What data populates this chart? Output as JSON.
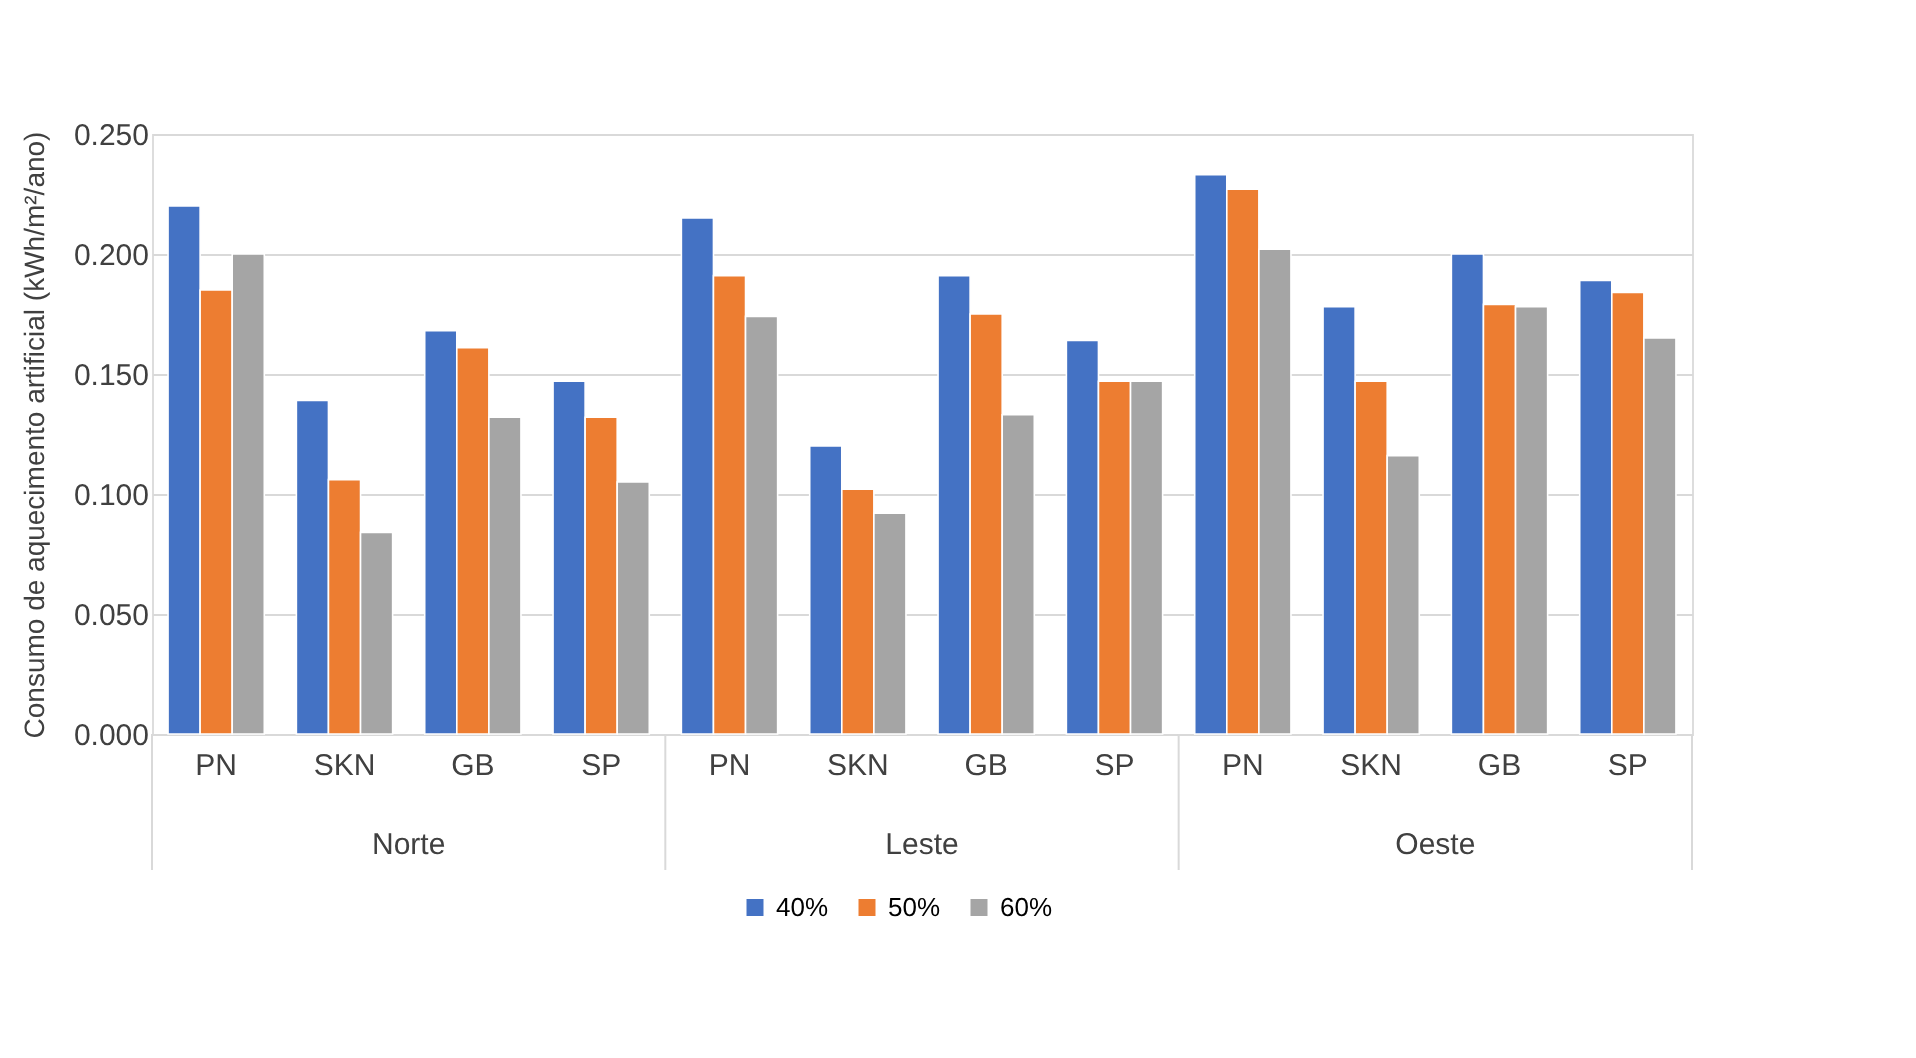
{
  "chart_data": {
    "type": "bar",
    "categories": [
      "PN",
      "SKN",
      "GB",
      "SP",
      "PN",
      "SKN",
      "GB",
      "SP",
      "PN",
      "SKN",
      "GB",
      "SP"
    ],
    "ylabel": "Consumo de aquecimento artificial (kWh/m²/ano)",
    "annotations": [
      "Norte",
      "Leste",
      "Oeste"
    ],
    "series": [
      {
        "name": "40%",
        "color": "#4472c4",
        "values": [
          0.22,
          0.139,
          0.168,
          0.147,
          0.215,
          0.12,
          0.191,
          0.164,
          0.233,
          0.178,
          0.2,
          0.189
        ]
      },
      {
        "name": "50%",
        "color": "#ed7d31",
        "values": [
          0.185,
          0.106,
          0.161,
          0.132,
          0.191,
          0.102,
          0.175,
          0.147,
          0.227,
          0.147,
          0.179,
          0.184
        ]
      },
      {
        "name": "60%",
        "color": "#a5a5a5",
        "values": [
          0.2,
          0.084,
          0.132,
          0.105,
          0.174,
          0.092,
          0.133,
          0.147,
          0.202,
          0.116,
          0.178,
          0.165
        ]
      }
    ],
    "ylim": [
      0,
      0.25
    ],
    "yticks": [
      {
        "value": 0,
        "label": "0.000"
      },
      {
        "value": 0.05,
        "label": "0.050"
      },
      {
        "value": 0.1,
        "label": "0.100"
      },
      {
        "value": 0.15,
        "label": "0.150"
      },
      {
        "value": 0.2,
        "label": "0.200"
      },
      {
        "value": 0.25,
        "label": "0.250"
      }
    ],
    "grid": "y",
    "legend": "bottom"
  }
}
